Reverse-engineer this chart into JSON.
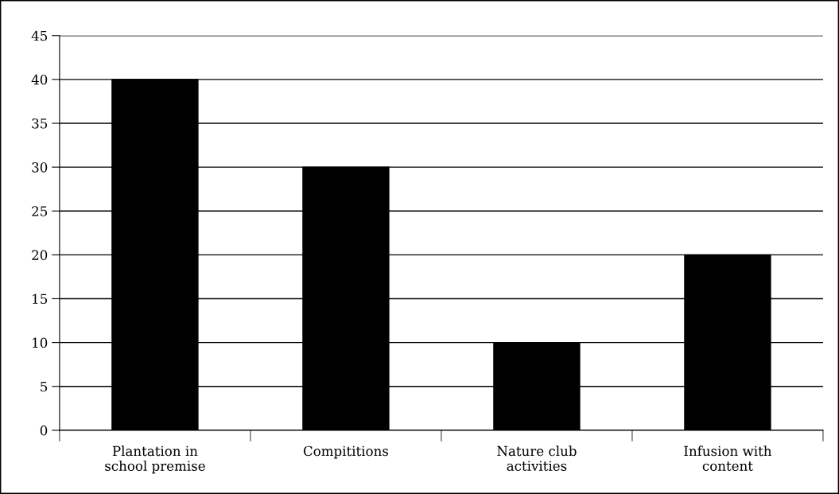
{
  "chart_data": {
    "type": "bar",
    "categories": [
      "Plantation in\nschool premise",
      "Compititions",
      "Nature club\nactivities",
      "Infusion with\ncontent"
    ],
    "values": [
      40,
      30,
      10,
      20
    ],
    "color": "#000000",
    "ylim": [
      0,
      45
    ],
    "yticks": [
      0,
      5,
      10,
      15,
      20,
      25,
      30,
      35,
      40,
      45
    ],
    "grid": "y",
    "legend": false
  }
}
